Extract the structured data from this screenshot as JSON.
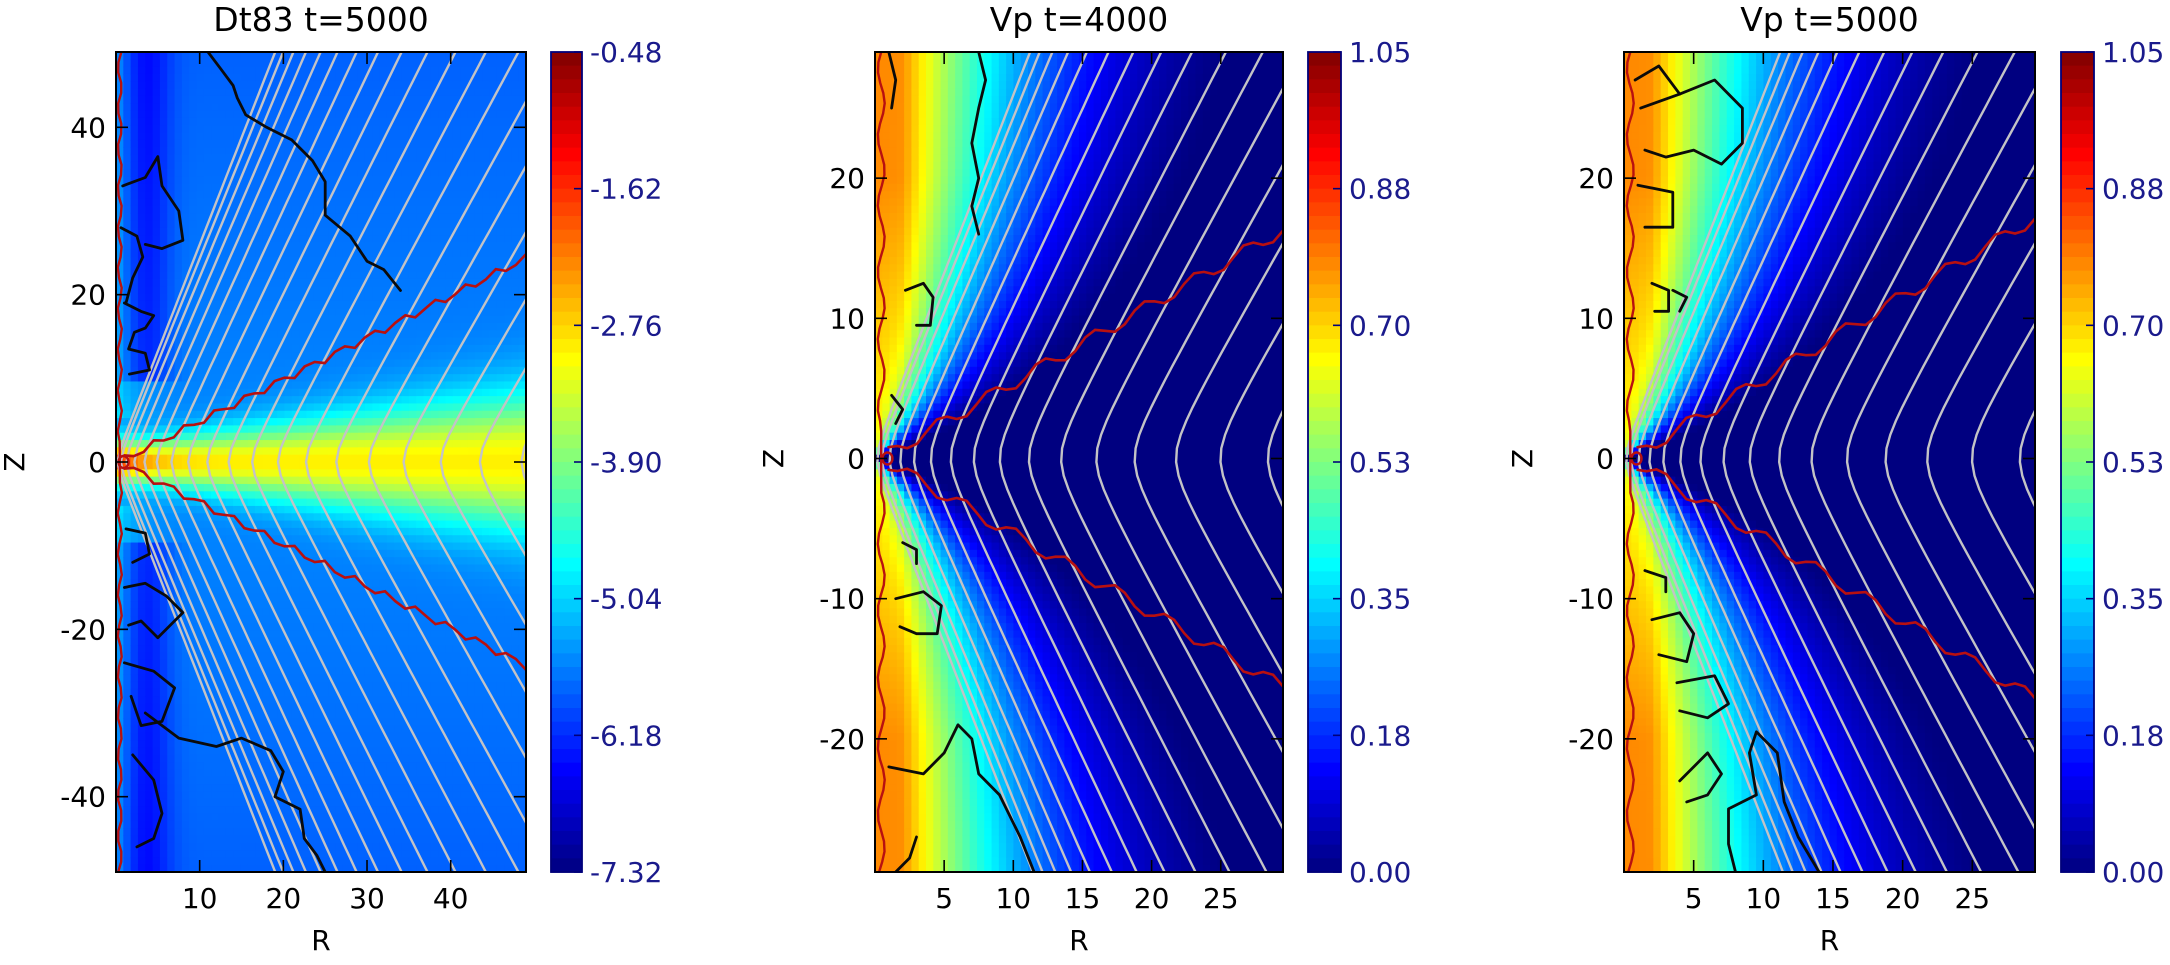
{
  "chart_data": [
    {
      "type": "heatmap",
      "title": "Dt83 t=5000",
      "xlabel": "R",
      "ylabel": "Z",
      "xlim": [
        0,
        49
      ],
      "ylim": [
        -49,
        49
      ],
      "x_ticks": [
        10,
        20,
        30,
        40
      ],
      "y_ticks": [
        -40,
        -20,
        0,
        20,
        40
      ],
      "colorbar": {
        "min": -7.32,
        "max": -0.48,
        "tick_labels": [
          "-0.48",
          "-1.62",
          "-2.76",
          "-3.90",
          "-5.04",
          "-6.18",
          "-7.32"
        ]
      },
      "field": "disk",
      "red_contour_slope": 0.5,
      "field_line_count": 20,
      "black_contours": [
        [
          [
            0.6,
            28
          ],
          [
            2.5,
            27
          ],
          [
            3.2,
            24.5
          ],
          [
            2.0,
            22
          ],
          [
            1.2,
            19
          ]
        ],
        [
          [
            0.8,
            33
          ],
          [
            3.5,
            34
          ],
          [
            5.0,
            36.5
          ],
          [
            5.5,
            33
          ],
          [
            7.5,
            30
          ],
          [
            8.0,
            26.5
          ],
          [
            5.5,
            25.5
          ],
          [
            3.5,
            26
          ]
        ],
        [
          [
            1.0,
            19
          ],
          [
            3.0,
            18
          ],
          [
            4.5,
            17.5
          ],
          [
            3.5,
            16
          ],
          [
            2.2,
            15.5
          ],
          [
            1.5,
            13.5
          ],
          [
            3.5,
            13
          ],
          [
            4.0,
            11
          ],
          [
            1.6,
            10.5
          ]
        ],
        [
          [
            11,
            49
          ],
          [
            12.5,
            47
          ],
          [
            14,
            45
          ],
          [
            14.5,
            43.5
          ],
          [
            15.5,
            41.5
          ],
          [
            18,
            40
          ],
          [
            21,
            38.5
          ],
          [
            23.5,
            36
          ],
          [
            25,
            33.5
          ],
          [
            25,
            29.5
          ],
          [
            28,
            27
          ],
          [
            30,
            24
          ],
          [
            32,
            23
          ],
          [
            34,
            20.5
          ]
        ],
        [
          [
            1.2,
            -8
          ],
          [
            3.5,
            -8.5
          ],
          [
            4.0,
            -11
          ],
          [
            2.0,
            -12
          ]
        ],
        [
          [
            1.0,
            -15
          ],
          [
            3.5,
            -14.5
          ],
          [
            6.0,
            -16
          ],
          [
            8.0,
            -18
          ],
          [
            5.0,
            -21
          ],
          [
            3.0,
            -19
          ],
          [
            1.5,
            -19.5
          ]
        ],
        [
          [
            1.0,
            -24
          ],
          [
            4.5,
            -25
          ],
          [
            7.0,
            -27
          ],
          [
            5.5,
            -31
          ],
          [
            3.0,
            -31.5
          ],
          [
            1.8,
            -28
          ]
        ],
        [
          [
            3.5,
            -30
          ],
          [
            7.5,
            -33
          ],
          [
            12,
            -34
          ],
          [
            15,
            -33
          ],
          [
            18.5,
            -34.5
          ],
          [
            20,
            -37
          ],
          [
            19,
            -40
          ],
          [
            22,
            -41.5
          ],
          [
            22.5,
            -45
          ],
          [
            24,
            -47
          ],
          [
            25,
            -49
          ]
        ],
        [
          [
            2.0,
            -35
          ],
          [
            4.5,
            -38
          ],
          [
            5.5,
            -42
          ],
          [
            4.5,
            -45
          ],
          [
            2.5,
            -46
          ]
        ]
      ]
    },
    {
      "type": "heatmap",
      "title": "Vp t=4000",
      "xlabel": "R",
      "ylabel": "Z",
      "xlim": [
        0,
        29.5
      ],
      "ylim": [
        -29.5,
        29
      ],
      "x_ticks": [
        5,
        10,
        15,
        20,
        25
      ],
      "y_ticks": [
        -20,
        -10,
        0,
        10,
        20
      ],
      "colorbar": {
        "min": 0.0,
        "max": 1.05,
        "tick_labels": [
          "1.05",
          "0.88",
          "0.70",
          "0.53",
          "0.35",
          "0.18",
          "0.00"
        ]
      },
      "field": "vp",
      "red_contour_slope": 0.56,
      "field_line_count": 17,
      "black_contours": [
        [
          [
            1.0,
            29
          ],
          [
            1.5,
            27
          ],
          [
            1.2,
            25
          ]
        ],
        [
          [
            7.5,
            29
          ],
          [
            8.0,
            27
          ],
          [
            7.5,
            25
          ],
          [
            7.0,
            22.5
          ],
          [
            7.5,
            20
          ],
          [
            7.0,
            18
          ],
          [
            7.5,
            16
          ]
        ],
        [
          [
            2.2,
            12
          ],
          [
            3.5,
            12.5
          ],
          [
            4.2,
            11.5
          ],
          [
            4.0,
            9.5
          ],
          [
            3.0,
            9.5
          ]
        ],
        [
          [
            1.2,
            4.5
          ],
          [
            2.0,
            3.5
          ],
          [
            1.5,
            2.5
          ]
        ],
        [
          [
            2.0,
            -6
          ],
          [
            3.0,
            -6.5
          ],
          [
            3.0,
            -7.5
          ]
        ],
        [
          [
            1.5,
            -10
          ],
          [
            3.5,
            -9.5
          ],
          [
            4.8,
            -10.5
          ],
          [
            4.5,
            -12.5
          ],
          [
            3.0,
            -12.5
          ],
          [
            1.8,
            -12
          ]
        ],
        [
          [
            1.0,
            -22
          ],
          [
            3.5,
            -22.5
          ],
          [
            5.0,
            -21
          ],
          [
            6.0,
            -19
          ],
          [
            7.0,
            -20
          ],
          [
            7.5,
            -22.5
          ],
          [
            9.0,
            -24
          ],
          [
            10.5,
            -27
          ],
          [
            11.5,
            -29.5
          ]
        ],
        [
          [
            1.5,
            -29.5
          ],
          [
            2.5,
            -28.5
          ],
          [
            3.0,
            -27
          ]
        ]
      ]
    },
    {
      "type": "heatmap",
      "title": "Vp t=5000",
      "xlabel": "R",
      "ylabel": "Z",
      "xlim": [
        0,
        29.5
      ],
      "ylim": [
        -29.5,
        29
      ],
      "x_ticks": [
        5,
        10,
        15,
        20,
        25
      ],
      "y_ticks": [
        -20,
        -10,
        0,
        10,
        20
      ],
      "colorbar": {
        "min": 0.0,
        "max": 1.05,
        "tick_labels": [
          "1.05",
          "0.88",
          "0.70",
          "0.53",
          "0.35",
          "0.18",
          "0.00"
        ]
      },
      "field": "vp",
      "red_contour_slope": 0.59,
      "field_line_count": 17,
      "black_contours": [
        [
          [
            0.8,
            27
          ],
          [
            2.5,
            28
          ],
          [
            4.0,
            26
          ]
        ],
        [
          [
            1.2,
            25
          ],
          [
            4.0,
            26
          ],
          [
            6.5,
            27
          ],
          [
            8.5,
            25
          ],
          [
            8.5,
            22.5
          ],
          [
            7.0,
            21
          ],
          [
            5.0,
            22
          ],
          [
            3.0,
            21.5
          ],
          [
            1.5,
            22
          ]
        ],
        [
          [
            1.0,
            19.5
          ],
          [
            3.5,
            19
          ],
          [
            3.5,
            16.5
          ],
          [
            1.5,
            16.5
          ]
        ],
        [
          [
            2.0,
            12.5
          ],
          [
            3.2,
            12
          ],
          [
            3.2,
            10.5
          ],
          [
            2.2,
            10.5
          ]
        ],
        [
          [
            3.5,
            12
          ],
          [
            4.5,
            11.5
          ],
          [
            4.0,
            10.5
          ]
        ],
        [
          [
            1.5,
            -8
          ],
          [
            3.0,
            -8.5
          ],
          [
            3.0,
            -9.5
          ]
        ],
        [
          [
            2.0,
            -11.5
          ],
          [
            4.0,
            -11
          ],
          [
            5.0,
            -12.5
          ],
          [
            4.5,
            -14.5
          ],
          [
            2.5,
            -14
          ]
        ],
        [
          [
            3.8,
            -16
          ],
          [
            6.5,
            -15.5
          ],
          [
            7.5,
            -17.5
          ],
          [
            6.0,
            -18.5
          ],
          [
            4.0,
            -18
          ]
        ],
        [
          [
            4.0,
            -23
          ],
          [
            6.0,
            -21
          ],
          [
            7.0,
            -22.5
          ],
          [
            6.0,
            -24
          ],
          [
            4.5,
            -24.5
          ]
        ],
        [
          [
            8.0,
            -29.5
          ],
          [
            7.5,
            -27.5
          ],
          [
            7.5,
            -25
          ],
          [
            9.5,
            -24
          ],
          [
            9.0,
            -21
          ],
          [
            9.5,
            -19.5
          ],
          [
            11,
            -21
          ],
          [
            11.5,
            -24.5
          ],
          [
            12.5,
            -27
          ],
          [
            14,
            -29.5
          ]
        ]
      ]
    }
  ]
}
